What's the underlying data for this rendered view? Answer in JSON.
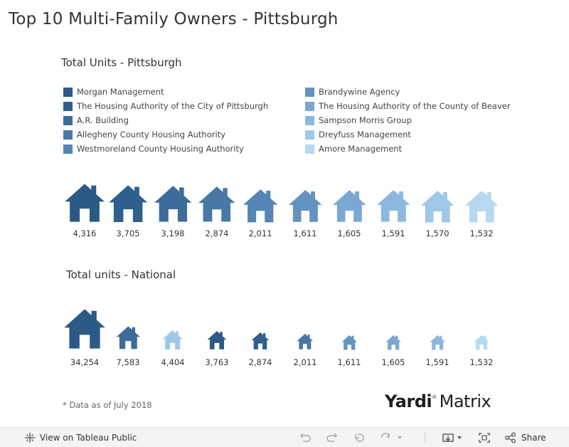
{
  "title": "Top 10 Multi-Family Owners - Pittsburgh",
  "subtitle_pittsburgh": "Total Units - Pittsburgh",
  "subtitle_national": "Total units - National",
  "note": "* Data as of July 2018",
  "logo": {
    "brand": "Yardi",
    "mark": "®",
    "product": "Matrix"
  },
  "toolbar": {
    "view_label": "View on Tableau Public",
    "share_label": "Share",
    "icons": [
      "tableau-logo-icon",
      "undo-icon",
      "redo-icon",
      "revert-icon",
      "refresh-icon",
      "download-icon",
      "fullscreen-icon",
      "share-icon"
    ]
  },
  "legend": {
    "left": [
      {
        "label": "Morgan Management",
        "color": "#2b5a87"
      },
      {
        "label": "The Housing Authority of the City of Pittsburgh",
        "color": "#2f5f8d"
      },
      {
        "label": "A.R. Building",
        "color": "#3e6c9a"
      },
      {
        "label": "Allegheny County Housing Authority",
        "color": "#4a78a6"
      },
      {
        "label": "Westmoreland County Housing Authority",
        "color": "#5585b3"
      }
    ],
    "right": [
      {
        "label": "Brandywine Agency",
        "color": "#6493bf"
      },
      {
        "label": "The Housing Authority of the County of Beaver",
        "color": "#7aa8d2"
      },
      {
        "label": "Sampson Morris Group",
        "color": "#8bb8de"
      },
      {
        "label": "Dreyfuss Management",
        "color": "#9fc8e8"
      },
      {
        "label": "Amore Management",
        "color": "#b6d8f0"
      }
    ]
  },
  "chart_data": [
    {
      "type": "bar",
      "mark": "house-icon",
      "title": "Total Units - Pittsburgh",
      "categories": [
        "Morgan Management",
        "The Housing Authority of the City of Pittsburgh",
        "A.R. Building",
        "Allegheny County Housing Authority",
        "Westmoreland County Housing Authority",
        "Brandywine Agency",
        "The Housing Authority of the County of Beaver",
        "Sampson Morris Group",
        "Dreyfuss Management",
        "Amore Management"
      ],
      "values": [
        4316,
        3705,
        3198,
        2874,
        2011,
        1611,
        1605,
        1591,
        1570,
        1532
      ],
      "labels": [
        "4,316",
        "3,705",
        "3,198",
        "2,874",
        "2,011",
        "1,611",
        "1,605",
        "1,591",
        "1,570",
        "1,532"
      ],
      "colors": [
        "#2b5a87",
        "#2f5f8d",
        "#3e6c9a",
        "#4a78a6",
        "#5585b3",
        "#6493bf",
        "#7aa8d2",
        "#8bb8de",
        "#9fc8e8",
        "#b6d8f0"
      ]
    },
    {
      "type": "bar",
      "mark": "house-icon",
      "title": "Total units - National",
      "values": [
        34254,
        7583,
        4404,
        3763,
        2874,
        2011,
        1611,
        1605,
        1591,
        1532
      ],
      "labels": [
        "34,254",
        "7,583",
        "4,404",
        "3,763",
        "2,874",
        "2,011",
        "1,611",
        "1,605",
        "1,591",
        "1,532"
      ],
      "colors": [
        "#2b5a87",
        "#3e6c9a",
        "#9fc8e8",
        "#2b5a87",
        "#2f5f8d",
        "#4a78a6",
        "#6493bf",
        "#7aa8d2",
        "#8bb8de",
        "#b6d8f0"
      ]
    }
  ]
}
